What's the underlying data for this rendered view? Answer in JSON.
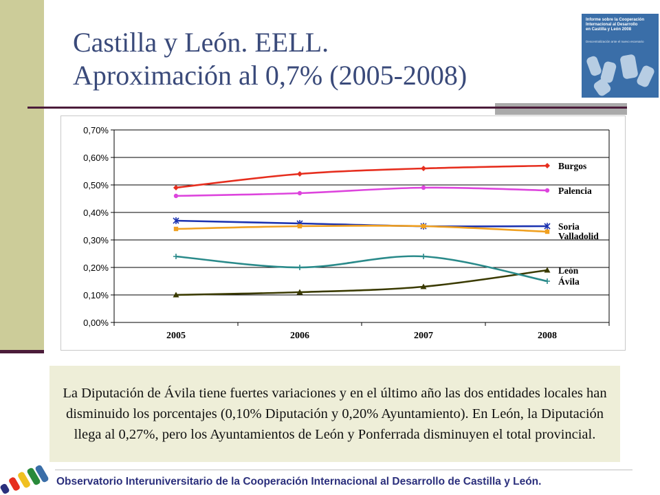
{
  "title": {
    "line1": "Castilla y León. EELL.",
    "line2": "Aproximación al 0,7% (2005-2008)"
  },
  "cover": {
    "lines": [
      "Informe sobre la Cooperación",
      "Internacional al Desarrollo",
      "en Castilla y León 2008"
    ],
    "subtitle": "Descentralización ante el nuevo escenario",
    "color": "#3a6ea8"
  },
  "chart_data": {
    "type": "line",
    "categories": [
      "2005",
      "2006",
      "2007",
      "2008"
    ],
    "ylim": [
      0,
      0.7
    ],
    "yticks": [
      "0,00%",
      "0,10%",
      "0,20%",
      "0,30%",
      "0,40%",
      "0,50%",
      "0,60%",
      "0,70%"
    ],
    "grid": true,
    "legend": "inline-right",
    "series": [
      {
        "name": "Burgos",
        "values": [
          0.49,
          0.54,
          0.56,
          0.57
        ],
        "color": "#e62e1e",
        "marker": "diamond"
      },
      {
        "name": "Palencia",
        "values": [
          0.46,
          0.47,
          0.49,
          0.48
        ],
        "color": "#dd44dd",
        "marker": "circle"
      },
      {
        "name": "Soria",
        "values": [
          0.37,
          0.36,
          0.35,
          0.35
        ],
        "color": "#1c33b0",
        "marker": "star"
      },
      {
        "name": "Valladolid",
        "values": [
          0.34,
          0.35,
          0.35,
          0.33
        ],
        "color": "#f0a020",
        "marker": "square"
      },
      {
        "name": "León",
        "values": [
          0.1,
          0.11,
          0.13,
          0.19
        ],
        "color": "#3a3a00",
        "marker": "triangle"
      },
      {
        "name": "Ávila",
        "values": [
          0.24,
          0.2,
          0.24,
          0.15
        ],
        "color": "#2a8a8a",
        "marker": "plus"
      }
    ]
  },
  "note": "La Diputación de Ávila tiene fuertes variaciones y en el último año las dos entidades locales han disminuido los porcentajes (0,10% Diputación y 0,20% Ayuntamiento). En León, la Diputación llega al 0,27%, pero los Ayuntamientos de León y Ponferrada disminuyen el total provincial.",
  "footer": "Observatorio Interuniversitario de la Cooperación Internacional al Desarrollo de Castilla y León."
}
